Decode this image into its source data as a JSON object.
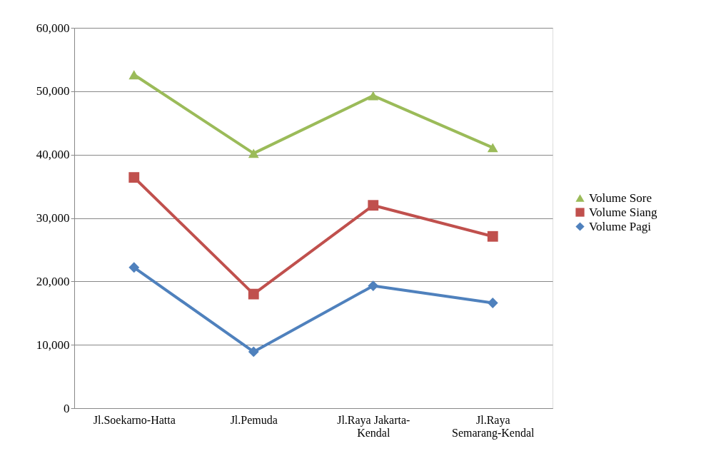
{
  "chart_data": {
    "type": "line",
    "categories": [
      "Jl.Soekarno-Hatta",
      "Jl.Pemuda",
      "Jl.Raya Jakarta-Kendal",
      "Jl.Raya Semarang-Kendal"
    ],
    "series": [
      {
        "name": "Volume Sore",
        "color": "#9bbb59",
        "marker": "triangle",
        "values": [
          52600,
          40200,
          49300,
          41100
        ]
      },
      {
        "name": "Volume Siang",
        "color": "#c0504d",
        "marker": "square",
        "values": [
          36400,
          18000,
          32000,
          27100
        ]
      },
      {
        "name": "Volume Pagi",
        "color": "#4f81bd",
        "marker": "diamond",
        "values": [
          22200,
          8900,
          19300,
          16600
        ]
      }
    ],
    "ylim": [
      0,
      60000
    ],
    "yticks": [
      0,
      {
        "value": 10000,
        "label": "10,000"
      },
      {
        "value": 20000,
        "label": "20,000"
      },
      {
        "value": 30000,
        "label": "30,000"
      },
      {
        "value": 40000,
        "label": "40,000"
      },
      {
        "value": 50000,
        "label": "50,000"
      },
      {
        "value": 60000,
        "label": "60,000"
      }
    ],
    "grid": "y",
    "legend": "right",
    "line_style": "solid"
  }
}
